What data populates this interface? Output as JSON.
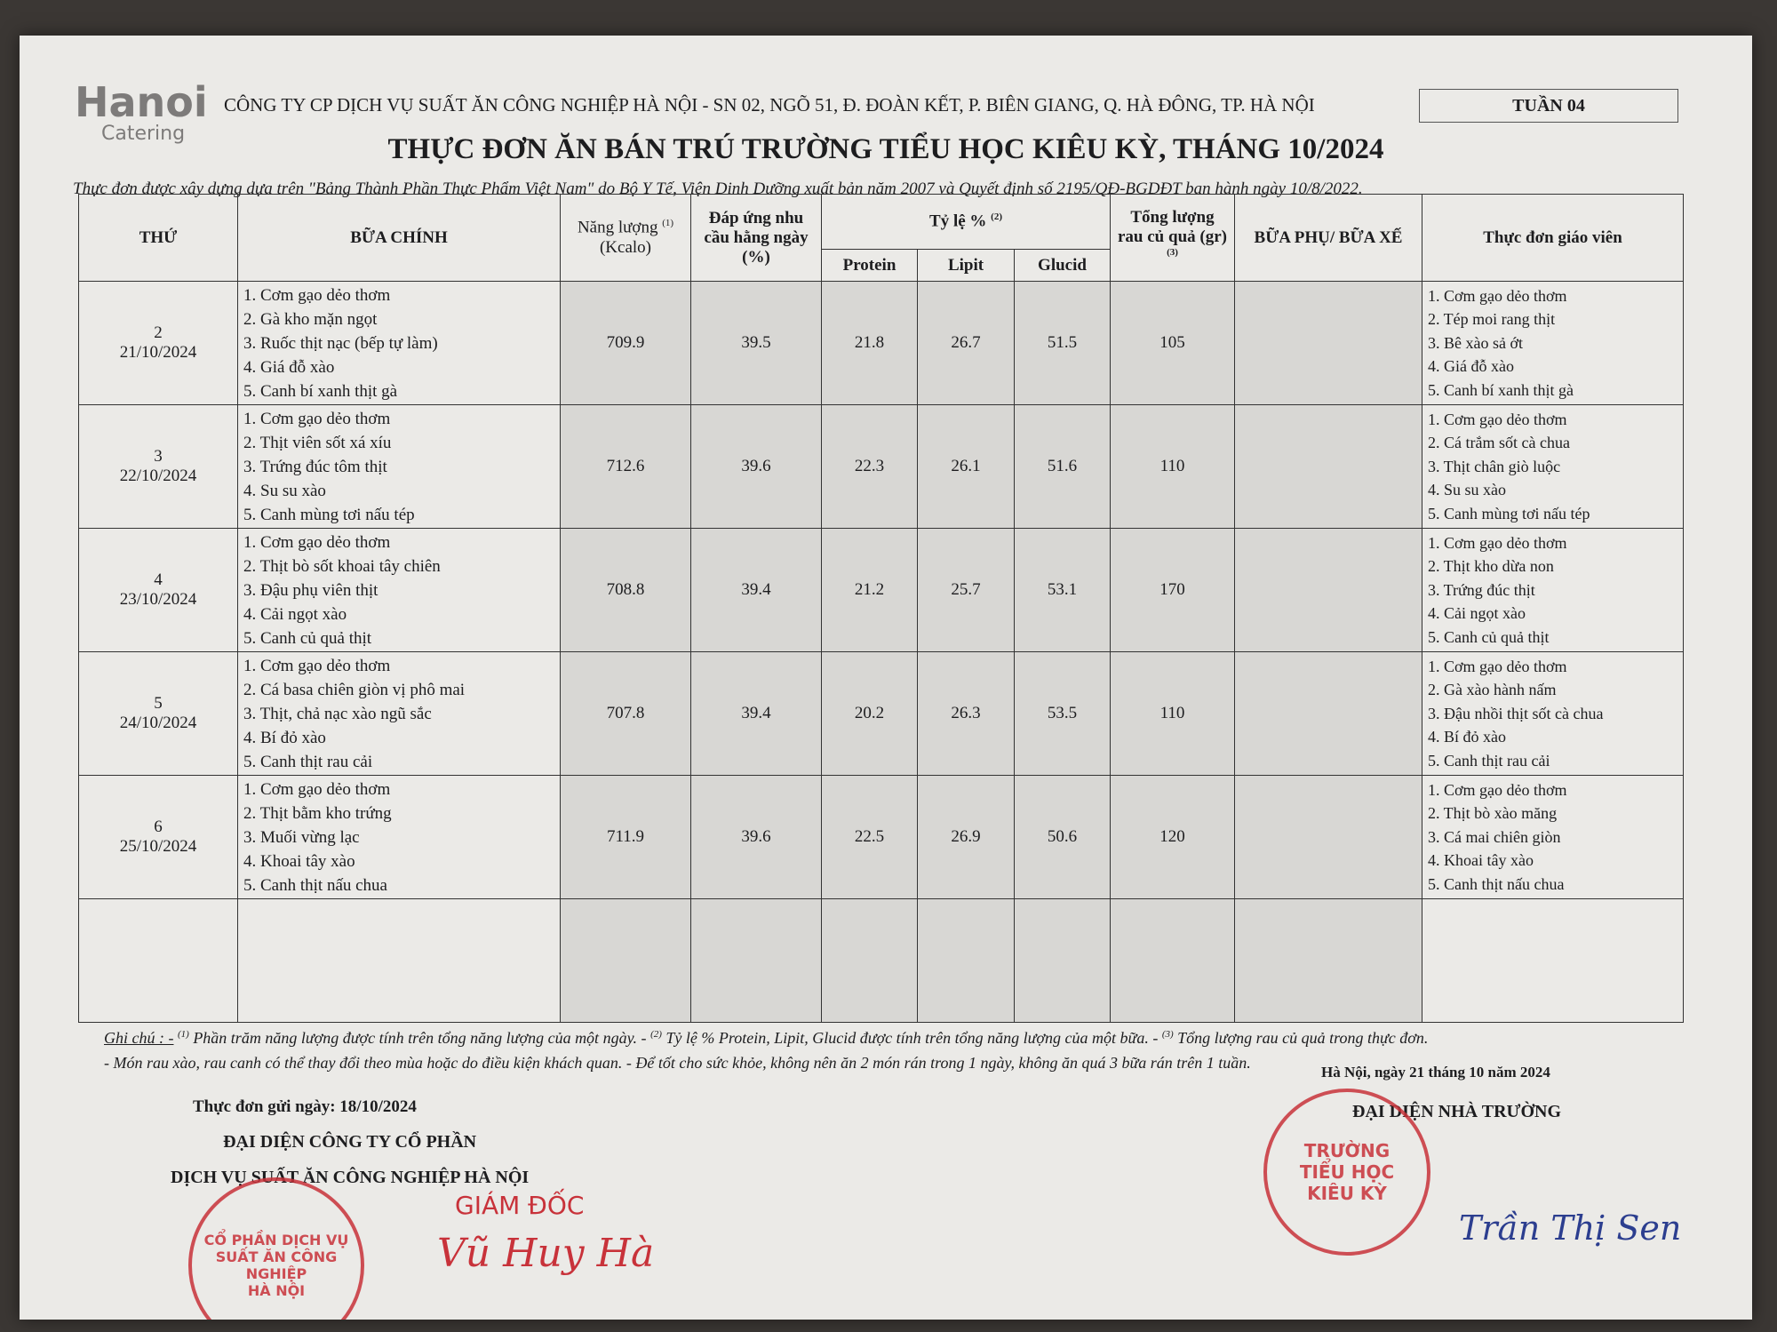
{
  "header": {
    "logo": "Hanoi",
    "logo_sub": "Catering",
    "company": "CÔNG TY CP DỊCH VỤ SUẤT ĂN CÔNG NGHIỆP HÀ NỘI - SN 02, NGÕ 51, Đ. ĐOÀN KẾT, P. BIÊN GIANG, Q. HÀ ĐÔNG, TP. HÀ NỘI",
    "week": "TUẦN 04",
    "title": "THỰC ĐƠN ĂN BÁN TRÚ TRƯỜNG TIỂU HỌC KIÊU KỲ, THÁNG 10/2024",
    "subtitle": "Thực đơn được xây dựng dựa trên \"Bảng Thành Phần Thực Phẩm Việt Nam\" do Bộ Y Tế, Viện Dinh Dưỡng xuất bản năm 2007 và Quyết định số 2195/QĐ-BGDĐT ban hành ngày 10/8/2022."
  },
  "table": {
    "headers": {
      "day": "THỨ",
      "main": "BỮA CHÍNH",
      "energy": "Năng lượng",
      "energy_note": "(1)",
      "energy_unit": "(Kcalo)",
      "demand": "Đáp ứng nhu cầu hằng ngày (%)",
      "ratio": "Tỷ lệ %",
      "ratio_note": "(2)",
      "protein": "Protein",
      "lipit": "Lipit",
      "glucid": "Glucid",
      "veg": "Tổng lượng rau củ quả (gr)",
      "veg_note": "(3)",
      "snack": "BỮA PHỤ/ BỮA XẾ",
      "teacher": "Thực đơn giáo viên"
    },
    "rows": [
      {
        "day": "2",
        "date": "21/10/2024",
        "main": [
          "1. Cơm gạo dẻo thơm",
          "2. Gà kho mặn ngọt",
          "3. Ruốc thịt nạc (bếp tự làm)",
          "4. Giá đỗ xào",
          "5. Canh bí xanh thịt gà"
        ],
        "energy": "709.9",
        "demand": "39.5",
        "protein": "21.8",
        "lipit": "26.7",
        "glucid": "51.5",
        "veg": "105",
        "teacher": [
          "1. Cơm gạo dẻo thơm",
          "2. Tép moi rang thịt",
          "3. Bê xào sả ớt",
          "4. Giá đỗ xào",
          "5. Canh bí xanh thịt gà"
        ]
      },
      {
        "day": "3",
        "date": "22/10/2024",
        "main": [
          "1. Cơm gạo dẻo thơm",
          "2. Thịt viên sốt xá xíu",
          "3. Trứng đúc tôm thịt",
          "4. Su su xào",
          "5. Canh mùng tơi nấu tép"
        ],
        "energy": "712.6",
        "demand": "39.6",
        "protein": "22.3",
        "lipit": "26.1",
        "glucid": "51.6",
        "veg": "110",
        "teacher": [
          "1. Cơm gạo dẻo thơm",
          "2. Cá trắm sốt cà chua",
          "3. Thịt chân giò luộc",
          "4. Su su xào",
          "5. Canh mùng tơi nấu tép"
        ]
      },
      {
        "day": "4",
        "date": "23/10/2024",
        "main": [
          "1. Cơm gạo dẻo thơm",
          "2. Thịt bò sốt khoai tây chiên",
          "3. Đậu phụ viên thịt",
          "4. Cải ngọt xào",
          "5. Canh củ quả thịt"
        ],
        "energy": "708.8",
        "demand": "39.4",
        "protein": "21.2",
        "lipit": "25.7",
        "glucid": "53.1",
        "veg": "170",
        "teacher": [
          "1. Cơm gạo dẻo thơm",
          "2. Thịt kho dừa non",
          "3. Trứng đúc thịt",
          "4. Cải ngọt xào",
          "5. Canh củ quả thịt"
        ]
      },
      {
        "day": "5",
        "date": "24/10/2024",
        "main": [
          "1. Cơm gạo dẻo thơm",
          "2. Cá basa chiên giòn vị phô mai",
          "3. Thịt, chả nạc xào ngũ sắc",
          "4. Bí đỏ xào",
          "5. Canh thịt rau cải"
        ],
        "energy": "707.8",
        "demand": "39.4",
        "protein": "20.2",
        "lipit": "26.3",
        "glucid": "53.5",
        "veg": "110",
        "teacher": [
          "1. Cơm gạo dẻo thơm",
          "2. Gà xào hành nấm",
          "3. Đậu nhồi thịt sốt cà chua",
          "4. Bí đỏ xào",
          "5. Canh thịt rau cải"
        ]
      },
      {
        "day": "6",
        "date": "25/10/2024",
        "main": [
          "1. Cơm gạo dẻo thơm",
          "2. Thịt bằm kho trứng",
          "3. Muối vừng lạc",
          "4. Khoai tây xào",
          "5. Canh thịt nấu chua"
        ],
        "energy": "711.9",
        "demand": "39.6",
        "protein": "22.5",
        "lipit": "26.9",
        "glucid": "50.6",
        "veg": "120",
        "teacher": [
          "1. Cơm gạo dẻo thơm",
          "2. Thịt bò xào măng",
          "3. Cá mai chiên giòn",
          "4. Khoai tây xào",
          "5. Canh thịt nấu chua"
        ]
      }
    ]
  },
  "notes": {
    "label": "Ghi chú : -",
    "line1": [
      {
        "sup": "(1)",
        "text": "Phần trăm năng lượng được tính trên tổng năng lượng của một ngày. -"
      },
      {
        "sup": "(2)",
        "text": "Tỷ lệ % Protein, Lipit, Glucid được tính trên tổng năng lượng của một bữa. -"
      },
      {
        "sup": "(3)",
        "text": "Tổng lượng rau củ quả trong thực đơn."
      }
    ],
    "line2": "- Món rau xào, rau canh có thể thay đổi theo mùa hoặc do điều kiện khách quan. - Để tốt cho sức khỏe, không nên ăn 2 món rán trong 1 ngày, không ăn quá 3 bữa rán trên 1 tuần."
  },
  "signatures": {
    "sent": "Thực đơn gửi ngày: 18/10/2024",
    "company_rep": [
      "ĐẠI DIỆN CÔNG TY CỔ PHẦN",
      "DỊCH VỤ SUẤT ĂN CÔNG NGHIỆP HÀ NỘI"
    ],
    "company_stamp": [
      "CỔ PHẦN DỊCH VỤ",
      "SUẤT ĂN CÔNG NGHIỆP",
      "HÀ NỘI"
    ],
    "director": "GIÁM ĐỐC",
    "director_name": "Vũ Huy Hà",
    "date": "Hà Nội, ngày 21 tháng 10 năm 2024",
    "school_rep": "ĐẠI DIỆN NHÀ TRƯỜNG",
    "school_stamp": [
      "TRƯỜNG",
      "TIỂU HỌC",
      "KIÊU KỲ"
    ],
    "school_signer": "Trần Thị Sen"
  }
}
